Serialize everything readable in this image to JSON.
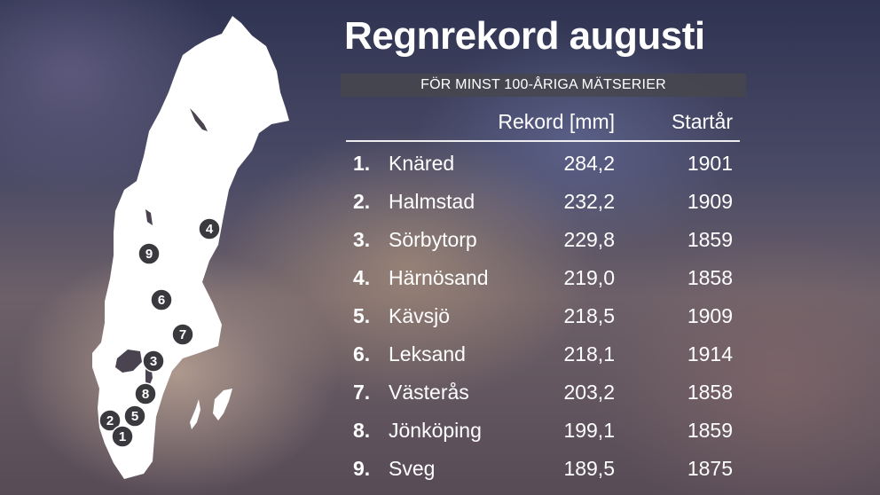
{
  "title": "Regnrekord augusti",
  "subtitle": "FÖR MINST 100-ÅRIGA MÄTSERIER",
  "table": {
    "columns": {
      "record": "Rekord [mm]",
      "start_year": "Startår"
    },
    "rows": [
      {
        "rank": "1.",
        "place": "Knäred",
        "record": "284,2",
        "start_year": "1901"
      },
      {
        "rank": "2.",
        "place": "Halmstad",
        "record": "232,2",
        "start_year": "1909"
      },
      {
        "rank": "3.",
        "place": "Sörbytorp",
        "record": "229,8",
        "start_year": "1859"
      },
      {
        "rank": "4.",
        "place": "Härnösand",
        "record": "219,0",
        "start_year": "1858"
      },
      {
        "rank": "5.",
        "place": "Kävsjö",
        "record": "218,5",
        "start_year": "1909"
      },
      {
        "rank": "6.",
        "place": "Leksand",
        "record": "218,1",
        "start_year": "1914"
      },
      {
        "rank": "7.",
        "place": "Västerås",
        "record": "203,2",
        "start_year": "1858"
      },
      {
        "rank": "8.",
        "place": "Jönköping",
        "record": "199,1",
        "start_year": "1859"
      },
      {
        "rank": "9.",
        "place": "Sveg",
        "record": "189,5",
        "start_year": "1875"
      }
    ]
  },
  "map": {
    "markers": [
      "1",
      "2",
      "3",
      "4",
      "5",
      "6",
      "7",
      "8",
      "9"
    ],
    "colors": {
      "land": "#ffffff",
      "marker_fill": "#3a3a3e",
      "marker_text": "#ffffff"
    }
  }
}
